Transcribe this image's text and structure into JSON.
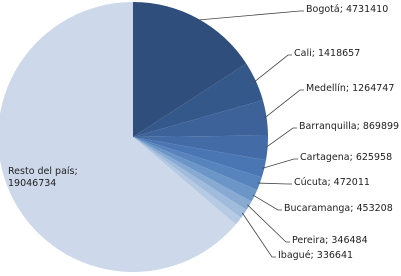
{
  "chart_data": {
    "type": "pie",
    "values": [
      4731410,
      1418657,
      1264747,
      869899,
      625958,
      472011,
      453208,
      346484,
      336641,
      300000,
      19046734
    ],
    "value_labels": [
      "Bogotá; 4731410",
      "Cali; 1418657",
      "Medellín; 1264747",
      "Barranquilla; 869899",
      "Cartagena; 625958",
      "Cúcuta; 472011",
      "Bucaramanga; 453208",
      "Pereira; 346484",
      "Ibagué; 336641",
      null,
      "Resto del país; 19046734"
    ],
    "colors": [
      "#2f4e7c",
      "#35588b",
      "#3c6299",
      "#436ca6",
      "#4a77b3",
      "#5884be",
      "#6d96c8",
      "#87a9d2",
      "#a0bbdc",
      "#b6cae4",
      "#cdd8ea"
    ]
  }
}
